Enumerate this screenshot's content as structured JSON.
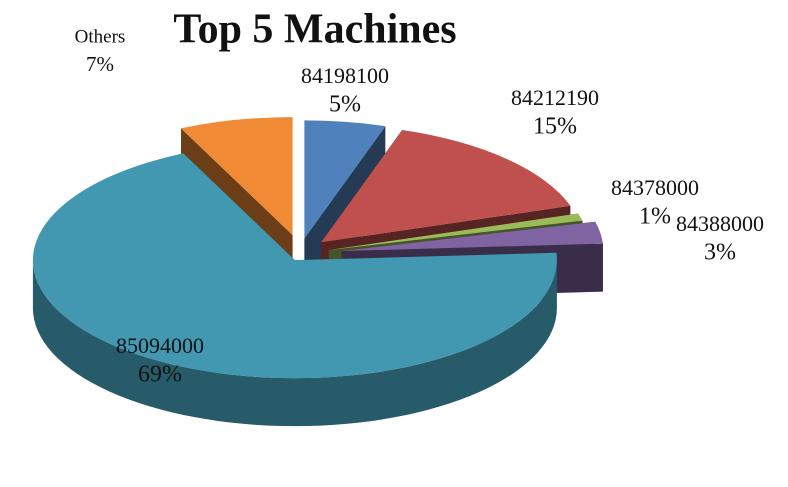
{
  "chart_data": {
    "type": "pie",
    "title": "Top 5 Machines",
    "categories": [
      "84198100",
      "84212190",
      "84378000",
      "84388000",
      "85094000",
      "Others"
    ],
    "values": [
      5,
      15,
      1,
      3,
      69,
      7
    ],
    "value_labels": [
      "5%",
      "15%",
      "1%",
      "3%",
      "69%",
      "7%"
    ],
    "colors": [
      "#4f81bd",
      "#c0504d",
      "#9bbb59",
      "#8064a2",
      "#4198b0",
      "#f08a35"
    ]
  }
}
